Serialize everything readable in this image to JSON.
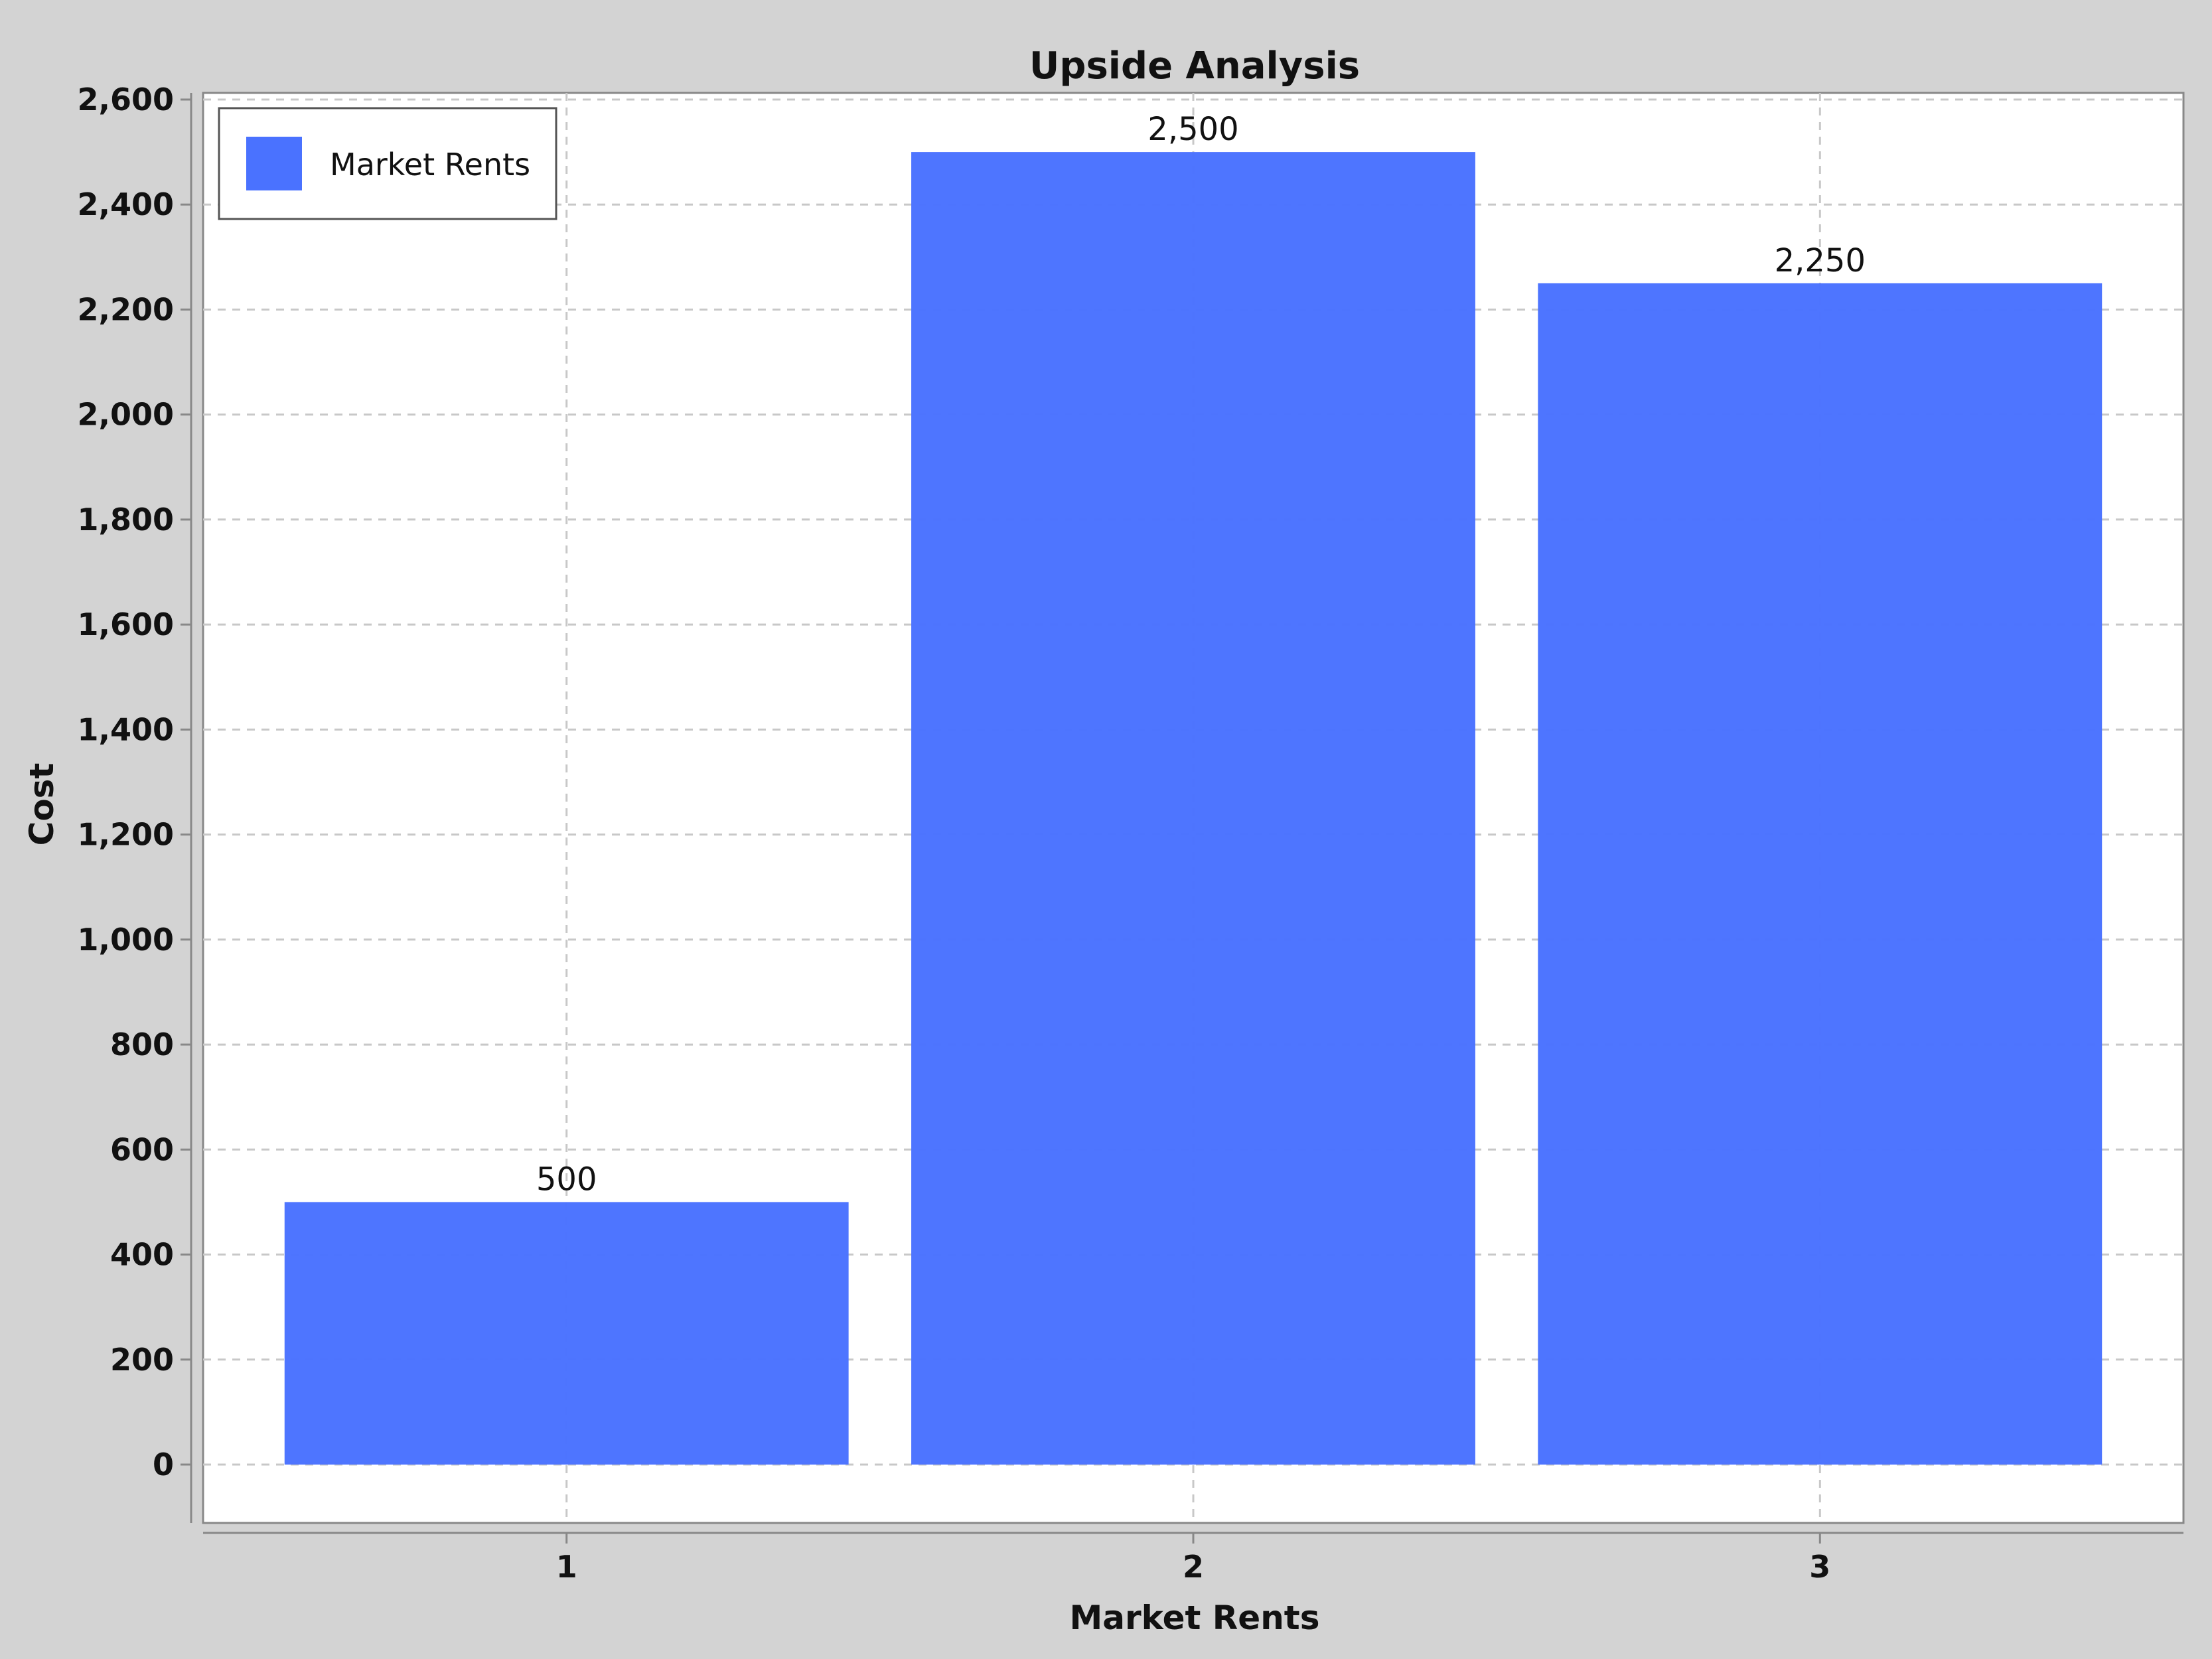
{
  "chart_data": {
    "type": "bar",
    "title": "Upside Analysis",
    "xlabel": "Market Rents",
    "ylabel": "Cost",
    "categories": [
      "1",
      "2",
      "3"
    ],
    "series": [
      {
        "name": "Market Rents",
        "values": [
          500,
          2500,
          2250
        ],
        "color": "#4a72ff"
      }
    ],
    "value_labels": [
      "500",
      "2,500",
      "2,250"
    ],
    "ylim": [
      0,
      2600
    ],
    "y_ticks": [
      0,
      200,
      400,
      600,
      800,
      1000,
      1200,
      1400,
      1600,
      1800,
      2000,
      2200,
      2400,
      2600
    ],
    "y_tick_labels": [
      "0",
      "200",
      "400",
      "600",
      "800",
      "1,000",
      "1,200",
      "1,400",
      "1,600",
      "1,800",
      "2,000",
      "2,200",
      "2,400",
      "2,600"
    ],
    "grid": true,
    "legend": "top-left"
  },
  "colors": {
    "background": "#d3d3d3",
    "plot_background": "#ffffff",
    "bar": "#4a72ff",
    "grid": "#c8c8c8",
    "axis": "#888888"
  }
}
